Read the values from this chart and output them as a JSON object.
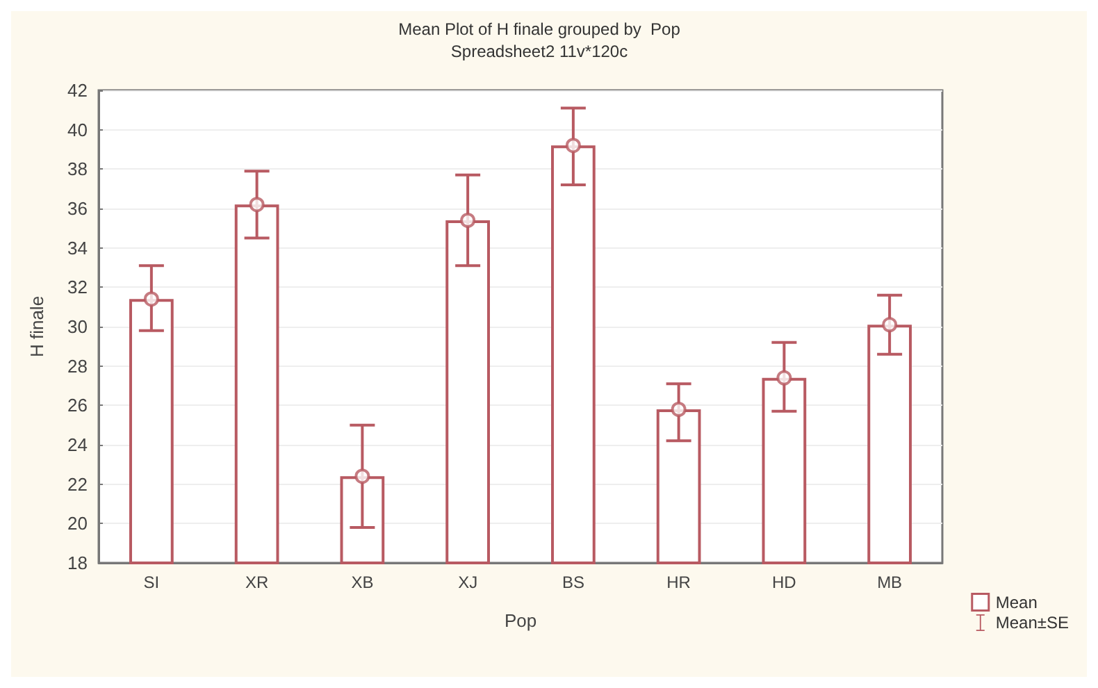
{
  "chart_data": {
    "type": "bar",
    "title": "Mean Plot of H finale grouped by  Pop",
    "subtitle": "Spreadsheet2 11v*120c",
    "xlabel": "Pop",
    "ylabel": "H finale",
    "categories": [
      "SI",
      "XR",
      "XB",
      "XJ",
      "BS",
      "HR",
      "HD",
      "MB"
    ],
    "series": [
      {
        "name": "Mean",
        "color": "#b85a62",
        "values": [
          31.4,
          36.2,
          22.4,
          35.4,
          39.2,
          25.8,
          27.4,
          30.1
        ],
        "errors": [
          [
            29.8,
            33.1
          ],
          [
            34.5,
            37.9
          ],
          [
            19.8,
            25.0
          ],
          [
            33.1,
            37.7
          ],
          [
            37.2,
            41.1
          ],
          [
            24.2,
            27.1
          ],
          [
            25.7,
            29.2
          ],
          [
            28.6,
            31.6
          ]
        ]
      },
      {
        "type": "scatter",
        "color": "#b85a62",
        "x": [
          "SI",
          "XR",
          "XB",
          "XJ",
          "BS",
          "HR",
          "HD",
          "MB"
        ],
        "values": [
          31.4,
          36.2,
          22.4,
          35.4,
          39.2,
          25.8,
          27.4,
          30.1
        ]
      }
    ],
    "annotations": [
      "Mean±SE"
    ],
    "ylim": [
      18,
      42
    ],
    "yticks": [
      18,
      20,
      22,
      24,
      26,
      28,
      30,
      32,
      34,
      36,
      38,
      40,
      42
    ],
    "grid": "y",
    "legend": "bottom right",
    "marker": "circle"
  }
}
